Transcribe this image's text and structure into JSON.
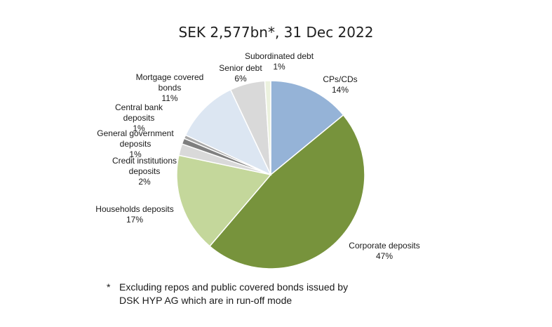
{
  "chart_data": {
    "type": "pie",
    "title": "SEK 2,577bn*, 31 Dec 2022",
    "slices": [
      {
        "label_lines": [
          "CPs/CDs"
        ],
        "percent_label": "14%",
        "value": 14,
        "color": "#95b3d7"
      },
      {
        "label_lines": [
          "Corporate deposits"
        ],
        "percent_label": "47%",
        "value": 47,
        "color": "#77933c"
      },
      {
        "label_lines": [
          "Households deposits"
        ],
        "percent_label": "17%",
        "value": 17,
        "color": "#c4d79b"
      },
      {
        "label_lines": [
          "Credit institutions",
          "deposits"
        ],
        "percent_label": "2%",
        "value": 2,
        "color": "#d9d9d9"
      },
      {
        "label_lines": [
          "General government",
          "deposits"
        ],
        "percent_label": "1%",
        "value": 1,
        "color": "#7f7f7f"
      },
      {
        "label_lines": [
          "Central bank",
          "deposits"
        ],
        "percent_label": "1%",
        "value": 0.6,
        "color": "#a6a6a6"
      },
      {
        "label_lines": [
          "Mortgage covered",
          "bonds"
        ],
        "percent_label": "11%",
        "value": 11,
        "color": "#dce6f2"
      },
      {
        "label_lines": [
          "Senior debt"
        ],
        "percent_label": "6%",
        "value": 6,
        "color": "#d9d9d9"
      },
      {
        "label_lines": [
          "Subordinated debt"
        ],
        "percent_label": "1%",
        "value": 1,
        "color": "#ebf1de"
      }
    ]
  },
  "footnote": {
    "marker": "*",
    "text": "Excluding repos and public covered bonds issued by\nDSK HYP AG which are in run-off mode"
  }
}
